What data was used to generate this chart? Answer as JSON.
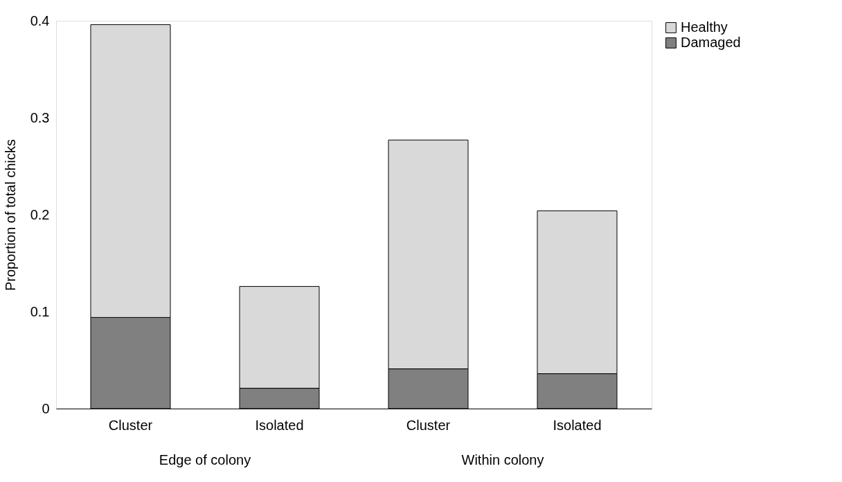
{
  "chart_data": {
    "type": "bar",
    "stacked": true,
    "ylabel": "Proportion of total chicks",
    "categories": [
      "Cluster",
      "Isolated",
      "Cluster",
      "Isolated"
    ],
    "series": [
      {
        "name": "Damaged",
        "color": "#808080",
        "values": [
          0.094,
          0.021,
          0.041,
          0.036
        ]
      },
      {
        "name": "Healthy",
        "color": "#d9d9d9",
        "values": [
          0.302,
          0.105,
          0.236,
          0.168
        ]
      }
    ],
    "ylim": [
      0,
      0.4
    ],
    "yticks": [
      0,
      0.1,
      0.2,
      0.3,
      0.4
    ],
    "grid": false,
    "legend": "right",
    "annotations": [
      "Edge of colony",
      "Within colony"
    ]
  }
}
